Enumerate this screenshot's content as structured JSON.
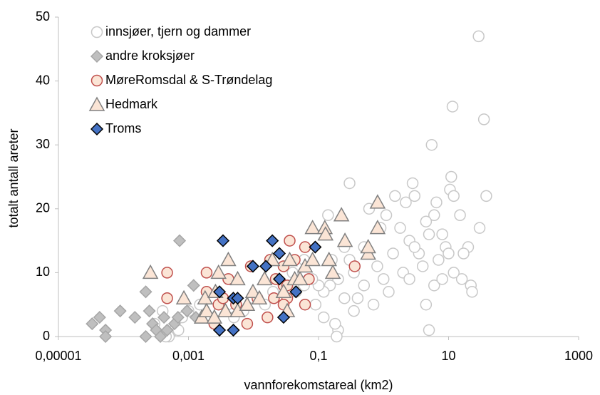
{
  "chart_data": {
    "type": "scatter",
    "xlabel": "vannforekomstareal (km2)",
    "ylabel": "totalt antall areter",
    "xscale": "log",
    "xlim": [
      1e-05,
      1000
    ],
    "xticks": [
      {
        "value": 1e-05,
        "label": "0,00001"
      },
      {
        "value": 0.001,
        "label": "0,001"
      },
      {
        "value": 0.1,
        "label": "0,1"
      },
      10,
      1000
    ],
    "ylim": [
      0,
      50
    ],
    "yticks": [
      0,
      10,
      20,
      30,
      40,
      50
    ],
    "legend": "upper left",
    "series": [
      {
        "name": "innsjøer, tjern og dammer",
        "marker": "circle",
        "color": "#ffffff",
        "edgecolor": "#c8c8c8",
        "x": [
          29,
          35,
          11.5,
          38,
          5.5,
          11,
          10.5,
          12,
          0.3,
          2.8,
          3,
          1.5,
          2.2,
          6.5,
          6,
          15,
          4.5,
          0.6,
          1.1,
          0.9,
          1.8,
          5,
          8,
          2.5,
          20,
          9,
          0.5,
          1.4,
          3.5,
          17,
          30,
          22,
          23,
          16,
          10,
          7,
          4,
          2,
          0.8,
          0.35,
          0.2,
          0.15,
          0.12,
          0.1,
          0.08,
          0.06,
          0.045,
          0.03,
          0.02,
          0.015,
          0.01,
          0.007,
          0.005,
          0.004,
          0.003,
          0.0025,
          0.002,
          0.0015,
          0.001,
          0.0008,
          0.0006,
          0.0004,
          0.0003,
          0.0005,
          0.00045,
          0.0007,
          0.25,
          0.4,
          0.7,
          1.2,
          2.5,
          5,
          4.5,
          0.2,
          0.19,
          0.18,
          0.12,
          0.3,
          0.5,
          0.06,
          0.04,
          0.09,
          0.35,
          0.14,
          0.16,
          0.25,
          3,
          1,
          6,
          8,
          12
        ],
        "values": [
          47,
          34,
          36,
          22,
          30,
          25,
          23,
          22,
          24,
          24,
          22,
          22,
          21,
          21,
          19,
          19,
          18,
          20,
          19,
          17,
          17,
          16,
          16,
          15,
          14,
          14,
          14,
          13,
          13,
          13,
          17,
          8,
          7,
          9,
          13,
          12,
          11,
          10,
          11,
          10,
          9,
          8,
          7,
          8,
          9,
          8,
          7,
          8,
          7,
          5,
          6,
          4,
          3,
          5,
          4,
          2,
          3,
          5,
          4,
          3,
          1,
          4,
          2,
          0,
          0,
          1,
          6,
          6,
          5,
          7,
          9,
          1,
          5,
          1,
          0,
          2,
          3,
          12,
          8,
          12,
          10,
          5,
          4,
          19,
          12,
          14,
          14,
          9,
          8,
          9,
          10
        ]
      },
      {
        "name": "andre kroksjøer",
        "marker": "diamond",
        "color": "#bfbfbf",
        "edgecolor": "#a6a6a6",
        "x": [
          3.3e-05,
          4.3e-05,
          5.3e-05,
          5.3e-05,
          8.9e-05,
          0.00015,
          0.00022,
          0.00025,
          0.00022,
          0.00028,
          0.00032,
          0.00037,
          0.00042,
          0.00047,
          0.00061,
          0.00069,
          0.00073,
          0.00095,
          0.0012,
          0.0013
        ],
        "values": [
          2,
          3,
          1,
          0,
          4,
          3,
          7,
          4,
          0,
          2,
          1,
          0,
          3,
          1,
          2,
          3,
          15,
          4,
          8,
          3
        ]
      },
      {
        "name": "MøreRomsdal & S-Trøndelag",
        "marker": "circle",
        "color": "#fbe5d6",
        "edgecolor": "#c0504d",
        "x": [
          0.00047,
          0.00047,
          0.0019,
          0.0019,
          0.0025,
          0.0029,
          0.0041,
          0.0034,
          0.0054,
          0.008,
          0.0091,
          0.0115,
          0.0164,
          0.018,
          0.0206,
          0.022,
          0.029,
          0.029,
          0.033,
          0.033,
          0.029,
          0.036,
          0.043,
          0.062,
          0.071,
          0.062,
          0.36
        ],
        "values": [
          10,
          6,
          10,
          7,
          2,
          5,
          9,
          6,
          5,
          2,
          11,
          6,
          3,
          12,
          6,
          9,
          11,
          8,
          8,
          6,
          5,
          15,
          12,
          5,
          9,
          14,
          11
        ]
      },
      {
        "name": "Hedmark",
        "marker": "triangle",
        "color": "#fbe5d6",
        "edgecolor": "#808080",
        "x": [
          0.00026,
          0.00085,
          0.0018,
          0.0016,
          0.0026,
          0.0029,
          0.0041,
          0.0037,
          0.0057,
          0.0057,
          0.0098,
          0.0123,
          0.0148,
          0.0195,
          0.029,
          0.033,
          0.036,
          0.043,
          0.052,
          0.062,
          0.081,
          0.081,
          0.125,
          0.128,
          0.145,
          0.166,
          0.225,
          0.255,
          0.58,
          0.58,
          0.81,
          0.81,
          0.008,
          0.0019,
          0.0025
        ],
        "values": [
          10,
          6,
          6,
          3,
          7,
          10,
          12,
          4,
          9,
          4,
          7,
          6,
          9,
          12,
          7,
          4,
          12,
          9,
          9,
          11,
          12,
          17,
          17,
          16,
          12,
          10,
          19,
          15,
          13,
          14,
          21,
          17,
          5,
          4,
          3
        ]
      },
      {
        "name": "Troms",
        "marker": "diamond",
        "color": "#4472c4",
        "edgecolor": "#000000",
        "x": [
          0.003,
          0.003,
          0.0034,
          0.0049,
          0.0057,
          0.0049,
          0.0098,
          0.0155,
          0.0195,
          0.025,
          0.025,
          0.029,
          0.045,
          0.089
        ],
        "values": [
          7,
          1,
          15,
          6,
          6,
          1,
          11,
          11,
          15,
          13,
          9,
          3,
          7,
          14
        ]
      }
    ]
  }
}
